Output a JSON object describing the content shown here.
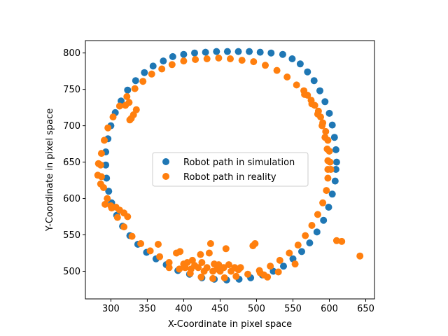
{
  "chart_data": {
    "type": "scatter",
    "title": "",
    "xlabel": "X-Coordinate in pixel space",
    "ylabel": "Y-Coordinate in pixel space",
    "xlim": [
      265,
      662
    ],
    "ylim": [
      462,
      817
    ],
    "xticks": [
      300,
      350,
      400,
      450,
      500,
      550,
      600,
      650
    ],
    "yticks": [
      500,
      550,
      600,
      650,
      700,
      750,
      800
    ],
    "grid": false,
    "legend_position": "center",
    "series": [
      {
        "name": "Robot path in simulation",
        "color": "#1f77b4",
        "points": [
          [
            610,
            650
          ],
          [
            609,
            667
          ],
          [
            607,
            684
          ],
          [
            604,
            701
          ],
          [
            600,
            717
          ],
          [
            594,
            733
          ],
          [
            587,
            748
          ],
          [
            579,
            762
          ],
          [
            570,
            774
          ],
          [
            560,
            785
          ],
          [
            549,
            792
          ],
          [
            536,
            798
          ],
          [
            520,
            800
          ],
          [
            505,
            801
          ],
          [
            490,
            802
          ],
          [
            475,
            802
          ],
          [
            460,
            802
          ],
          [
            445,
            802
          ],
          [
            430,
            801
          ],
          [
            415,
            800
          ],
          [
            400,
            798
          ],
          [
            385,
            795
          ],
          [
            372,
            789
          ],
          [
            358,
            782
          ],
          [
            346,
            773
          ],
          [
            334,
            762
          ],
          [
            323,
            749
          ],
          [
            314,
            734
          ],
          [
            306,
            718
          ],
          [
            300,
            700
          ],
          [
            296,
            682
          ],
          [
            293,
            664
          ],
          [
            293,
            646
          ],
          [
            294,
            628
          ],
          [
            297,
            610
          ],
          [
            301,
            594
          ],
          [
            308,
            577
          ],
          [
            316,
            562
          ],
          [
            326,
            549
          ],
          [
            337,
            537
          ],
          [
            349,
            526
          ],
          [
            362,
            517
          ],
          [
            376,
            509
          ],
          [
            392,
            501
          ],
          [
            408,
            496
          ],
          [
            425,
            491
          ],
          [
            442,
            489
          ],
          [
            459,
            488
          ],
          [
            476,
            489
          ],
          [
            492,
            491
          ],
          [
            508,
            495
          ],
          [
            523,
            500
          ],
          [
            537,
            507
          ],
          [
            550,
            517
          ],
          [
            562,
            527
          ],
          [
            573,
            539
          ],
          [
            583,
            554
          ],
          [
            592,
            570
          ],
          [
            599,
            588
          ],
          [
            604,
            606
          ],
          [
            608,
            624
          ],
          [
            609,
            640
          ]
        ]
      },
      {
        "name": "Robot path in reality",
        "color": "#ff7f0e",
        "points": [
          [
            598,
            652
          ],
          [
            597,
            668
          ],
          [
            594,
            684
          ],
          [
            590,
            700
          ],
          [
            584,
            716
          ],
          [
            576,
            730
          ],
          [
            566,
            743
          ],
          [
            555,
            756
          ],
          [
            542,
            767
          ],
          [
            528,
            776
          ],
          [
            512,
            783
          ],
          [
            496,
            788
          ],
          [
            480,
            790
          ],
          [
            464,
            792
          ],
          [
            448,
            793
          ],
          [
            432,
            792
          ],
          [
            416,
            791
          ],
          [
            400,
            789
          ],
          [
            384,
            784
          ],
          [
            370,
            778
          ],
          [
            356,
            771
          ],
          [
            344,
            761
          ],
          [
            333,
            751
          ],
          [
            322,
            740
          ],
          [
            312,
            727
          ],
          [
            303,
            712
          ],
          [
            296,
            697
          ],
          [
            291,
            680
          ],
          [
            287,
            662
          ],
          [
            286,
            646
          ],
          [
            287,
            630
          ],
          [
            290,
            615
          ],
          [
            295,
            600
          ],
          [
            301,
            587
          ],
          [
            309,
            574
          ],
          [
            318,
            561
          ],
          [
            329,
            548
          ],
          [
            341,
            538
          ],
          [
            354,
            528
          ],
          [
            367,
            520
          ],
          [
            380,
            512
          ],
          [
            394,
            503
          ],
          [
            409,
            497
          ],
          [
            424,
            492
          ],
          [
            440,
            490
          ],
          [
            456,
            491
          ],
          [
            472,
            493
          ],
          [
            488,
            496
          ],
          [
            504,
            501
          ],
          [
            519,
            507
          ],
          [
            532,
            515
          ],
          [
            545,
            525
          ],
          [
            557,
            536
          ],
          [
            567,
            549
          ],
          [
            576,
            563
          ],
          [
            584,
            578
          ],
          [
            591,
            594
          ],
          [
            596,
            611
          ],
          [
            598,
            628
          ],
          [
            598,
            640
          ],
          [
            283,
            648
          ],
          [
            282,
            632
          ],
          [
            286,
            620
          ],
          [
            292,
            592
          ],
          [
            300,
            590
          ],
          [
            307,
            588
          ],
          [
            312,
            584
          ],
          [
            318,
            580
          ],
          [
            323,
            575
          ],
          [
            328,
            710
          ],
          [
            331,
            715
          ],
          [
            335,
            722
          ],
          [
            326,
            708
          ],
          [
            320,
            728
          ],
          [
            325,
            732
          ],
          [
            365,
            537
          ],
          [
            380,
            505
          ],
          [
            390,
            525
          ],
          [
            395,
            527
          ],
          [
            400,
            510
          ],
          [
            402,
            505
          ],
          [
            405,
            512
          ],
          [
            410,
            503
          ],
          [
            412,
            515
          ],
          [
            415,
            508
          ],
          [
            420,
            505
          ],
          [
            423,
            523
          ],
          [
            425,
            512
          ],
          [
            428,
            500
          ],
          [
            432,
            505
          ],
          [
            435,
            525
          ],
          [
            437,
            538
          ],
          [
            440,
            500
          ],
          [
            442,
            510
          ],
          [
            446,
            503
          ],
          [
            448,
            509
          ],
          [
            450,
            500
          ],
          [
            452,
            505
          ],
          [
            455,
            505
          ],
          [
            458,
            531
          ],
          [
            462,
            509
          ],
          [
            465,
            500
          ],
          [
            470,
            505
          ],
          [
            475,
            502
          ],
          [
            478,
            505
          ],
          [
            495,
            535
          ],
          [
            498,
            538
          ],
          [
            505,
            498
          ],
          [
            510,
            495
          ],
          [
            515,
            492
          ],
          [
            530,
            499
          ],
          [
            553,
            510
          ],
          [
            610,
            542
          ],
          [
            617,
            541
          ],
          [
            642,
            521
          ],
          [
            565,
            748
          ],
          [
            570,
            742
          ],
          [
            575,
            735
          ],
          [
            580,
            728
          ],
          [
            585,
            720
          ],
          [
            588,
            712
          ],
          [
            591,
            704
          ],
          [
            595,
            692
          ],
          [
            598,
            680
          ],
          [
            600,
            665
          ],
          [
            601,
            650
          ],
          [
            602,
            640
          ]
        ]
      }
    ]
  }
}
